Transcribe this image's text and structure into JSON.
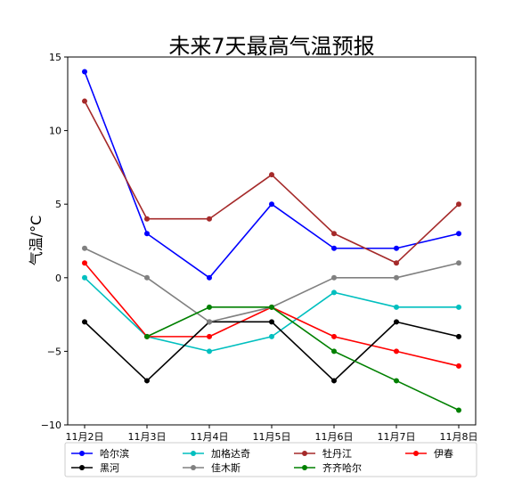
{
  "chart_data": {
    "type": "line",
    "title": "未来7天最高气温预报",
    "xlabel": "",
    "ylabel": "气温/°C",
    "categories": [
      "11月2日",
      "11月3日",
      "11月4日",
      "11月5日",
      "11月6日",
      "11月7日",
      "11月8日"
    ],
    "ylim": [
      -10,
      15
    ],
    "yticks": [
      -10,
      -5,
      0,
      5,
      10,
      15
    ],
    "grid": false,
    "legend_position": "bottom",
    "series": [
      {
        "name": "哈尔滨",
        "color": "#0000ff",
        "values": [
          14,
          3,
          0,
          5,
          2,
          2,
          3
        ]
      },
      {
        "name": "加格达奇",
        "color": "#00bfbf",
        "values": [
          0,
          -4,
          -5,
          -4,
          -1,
          -2,
          -2
        ]
      },
      {
        "name": "牡丹江",
        "color": "#a52a2a",
        "values": [
          12,
          4,
          4,
          7,
          3,
          1,
          5
        ]
      },
      {
        "name": "伊春",
        "color": "#ff0000",
        "values": [
          1,
          -4,
          -4,
          -2,
          -4,
          -5,
          -6
        ]
      },
      {
        "name": "黑河",
        "color": "#000000",
        "values": [
          -3,
          -7,
          -3,
          -3,
          -7,
          -3,
          -4
        ]
      },
      {
        "name": "佳木斯",
        "color": "#808080",
        "values": [
          2,
          0,
          -3,
          -2,
          0,
          0,
          1
        ]
      },
      {
        "name": "齐齐哈尔",
        "color": "#008000",
        "values": [
          null,
          -4,
          -2,
          -2,
          -5,
          -7,
          -9
        ]
      }
    ]
  }
}
